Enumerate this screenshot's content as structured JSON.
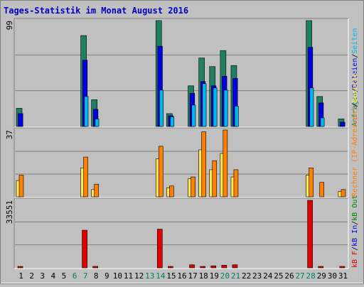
{
  "title": "Tages-Statistik im Monat August 2016",
  "colors": {
    "background": "#c0c0c0",
    "title": "#0000c0",
    "anfragen": "#1e8060",
    "dateien": "#0000e0",
    "seiten": "#00b8f0",
    "besuche": "#ffe850",
    "rechner": "#ff8000",
    "kb_f": "#e00000",
    "kb_in": "#0000e0",
    "kb_out": "#008000",
    "weekend_label": "#008060",
    "weekday_label": "#000000"
  },
  "chart_data": {
    "type": "bar",
    "title": "Tages-Statistik im Monat August 2016",
    "categories": [
      "1",
      "2",
      "3",
      "4",
      "5",
      "6",
      "7",
      "8",
      "9",
      "10",
      "11",
      "12",
      "13",
      "14",
      "15",
      "16",
      "17",
      "18",
      "19",
      "20",
      "21",
      "22",
      "23",
      "24",
      "25",
      "26",
      "27",
      "28",
      "29",
      "30",
      "31"
    ],
    "weekend_days": [
      "6",
      "7",
      "13",
      "14",
      "20",
      "21",
      "27",
      "28"
    ],
    "panels": [
      {
        "name": "requests",
        "ymax": 99,
        "ymax_label": "99",
        "axis_label_parts": [
          {
            "text": "Anfragen",
            "color": "#1e8060"
          },
          {
            "text": "/",
            "color": "#000000"
          },
          {
            "text": "Dateien",
            "color": "#0000e0"
          },
          {
            "text": "/",
            "color": "#000000"
          },
          {
            "text": "Seiten",
            "color": "#00b8f0"
          }
        ],
        "series": [
          {
            "name": "Anfragen",
            "color": "#1e8060",
            "values": [
              17,
              0,
              0,
              0,
              0,
              0,
              85,
              25,
              0,
              0,
              0,
              0,
              0,
              99,
              12,
              0,
              38,
              64,
              56,
              71,
              57,
              0,
              0,
              0,
              0,
              0,
              0,
              99,
              28,
              0,
              7
            ]
          },
          {
            "name": "Dateien",
            "color": "#0000e0",
            "values": [
              12,
              0,
              0,
              0,
              0,
              0,
              62,
              16,
              0,
              0,
              0,
              0,
              0,
              75,
              10,
              0,
              31,
              42,
              38,
              47,
              45,
              0,
              0,
              0,
              0,
              0,
              0,
              74,
              22,
              0,
              4
            ]
          },
          {
            "name": "Seiten",
            "color": "#00b8f0",
            "values": [
              0,
              0,
              0,
              0,
              0,
              0,
              28,
              7,
              0,
              0,
              0,
              0,
              0,
              34,
              9,
              0,
              20,
              40,
              36,
              34,
              19,
              0,
              0,
              0,
              0,
              0,
              0,
              36,
              8,
              0,
              0
            ]
          }
        ]
      },
      {
        "name": "visits",
        "ymax": 37,
        "ymax_label": "37",
        "axis_label_parts": [
          {
            "text": "Rechner (IP-Adressen)",
            "color": "#ff8000"
          },
          {
            "text": "/",
            "color": "#000000"
          },
          {
            "text": "Besuche",
            "color": "#ffe850"
          }
        ],
        "series": [
          {
            "name": "Besuche",
            "color": "#ffe850",
            "values": [
              9,
              0,
              0,
              0,
              0,
              0,
              16,
              4,
              0,
              0,
              0,
              0,
              0,
              21,
              5,
              0,
              10,
              26,
              15,
              24,
              11,
              0,
              0,
              0,
              0,
              0,
              0,
              12,
              0,
              0,
              3
            ]
          },
          {
            "name": "Rechner (IP-Adressen)",
            "color": "#ff8000",
            "values": [
              12,
              0,
              0,
              0,
              0,
              0,
              22,
              7,
              0,
              0,
              0,
              0,
              0,
              28,
              6,
              0,
              11,
              36,
              20,
              37,
              15,
              0,
              0,
              0,
              0,
              0,
              0,
              16,
              8,
              0,
              4
            ]
          }
        ]
      },
      {
        "name": "traffic",
        "ymax": 33551,
        "ymax_label": "33551",
        "axis_label_parts": [
          {
            "text": "kB F",
            "color": "#e00000"
          },
          {
            "text": "/",
            "color": "#000000"
          },
          {
            "text": "kB In",
            "color": "#0000e0"
          },
          {
            "text": "/",
            "color": "#000000"
          },
          {
            "text": "kB Out",
            "color": "#008000"
          }
        ],
        "series": [
          {
            "name": "kB F",
            "color": "#e00000",
            "values": [
              300,
              0,
              0,
              0,
              0,
              0,
              18700,
              500,
              0,
              0,
              0,
              0,
              0,
              19200,
              350,
              0,
              1500,
              700,
              1000,
              1300,
              1500,
              0,
              0,
              0,
              0,
              0,
              0,
              33551,
              700,
              0,
              300
            ]
          }
        ]
      }
    ]
  }
}
